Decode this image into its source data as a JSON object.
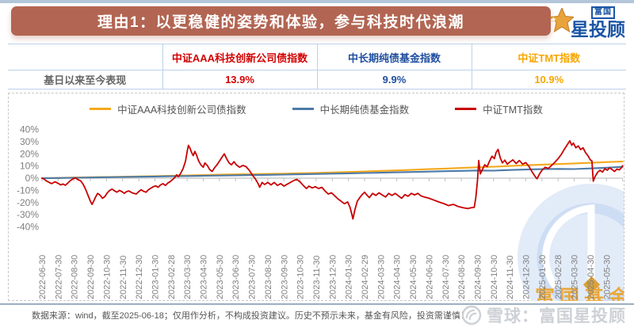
{
  "header": {
    "title": "理由1：以更稳健的姿势和体验，参与科技时代浪潮",
    "logo_top": "富国",
    "logo_main": "星投顾"
  },
  "table": {
    "row_label": "基日以来至今表现",
    "columns": [
      {
        "name": "中证AAA科技创新公司债指数",
        "value": "13.9%",
        "color": "#d40000"
      },
      {
        "name": "中长期纯债基金指数",
        "value": "9.9%",
        "color": "#1f4e9f"
      },
      {
        "name": "中证TMT指数",
        "value": "10.9%",
        "color": "#f7a600"
      }
    ]
  },
  "chart_data": {
    "type": "line",
    "title": "",
    "ylim": [
      -40,
      40
    ],
    "grid": false,
    "legend_position": "top",
    "y_tick_labels": [
      "40%",
      "30%",
      "20%",
      "10%",
      "0%",
      "-10%",
      "-20%",
      "-30%",
      "-40%"
    ],
    "x_labels": [
      "2022-06-30",
      "2022-07-30",
      "2022-08-30",
      "2022-09-30",
      "2022-10-30",
      "2022-11-30",
      "2022-12-30",
      "2023-01-30",
      "2023-02-28",
      "2023-03-30",
      "2023-04-30",
      "2023-05-30",
      "2023-06-30",
      "2023-07-30",
      "2023-08-30",
      "2023-09-30",
      "2023-10-30",
      "2023-11-30",
      "2023-12-30",
      "2024-01-30",
      "2024-02-29",
      "2024-03-30",
      "2024-04-30",
      "2024-05-30",
      "2024-06-30",
      "2024-07-30",
      "2024-08-30",
      "2024-09-30",
      "2024-10-30",
      "2024-11-30",
      "2024-12-30",
      "2025-01-30",
      "2025-02-28",
      "2025-03-30",
      "2025-04-30",
      "2025-05-30"
    ],
    "axis_color": "#c0c0c0",
    "label_color": "#7f7f7f",
    "series": [
      {
        "name": "中证AAA科技创新公司债指数",
        "color": "#f5a81c",
        "unit": "%",
        "values": [
          0,
          0.2,
          0.5,
          0.8,
          1.0,
          1.2,
          1.4,
          1.7,
          2.0,
          2.3,
          2.6,
          2.9,
          3.1,
          3.3,
          3.5,
          3.7,
          4.0,
          4.3,
          4.7,
          5.1,
          5.5,
          6.0,
          6.4,
          6.9,
          7.4,
          7.9,
          8.4,
          8.9,
          9.4,
          10.0,
          10.6,
          11.1,
          11.6,
          12.1,
          12.6,
          13.2,
          13.7
        ]
      },
      {
        "name": "中长期纯债基金指数",
        "color": "#4d7aa8",
        "unit": "%",
        "values": [
          0,
          0.15,
          0.35,
          0.55,
          0.75,
          0.95,
          1.15,
          1.35,
          1.55,
          1.75,
          1.95,
          2.15,
          2.35,
          2.55,
          2.75,
          2.95,
          3.2,
          3.45,
          3.7,
          3.95,
          4.2,
          4.5,
          4.8,
          5.1,
          5.4,
          5.7,
          6.0,
          6.3,
          6.2,
          6.7,
          7.1,
          7.4,
          7.6,
          7.5,
          8.0,
          8.6,
          9.3
        ]
      },
      {
        "name": "中证TMT指数",
        "color": "#c80000",
        "unit": "%",
        "points": [
          [
            0,
            0
          ],
          [
            0.15,
            -1
          ],
          [
            0.3,
            -2.5
          ],
          [
            0.45,
            -3.5
          ],
          [
            0.6,
            -4.5
          ],
          [
            0.8,
            -3
          ],
          [
            1,
            -4.2
          ],
          [
            1.15,
            -5.5
          ],
          [
            1.3,
            -4.8
          ],
          [
            1.45,
            -5.8
          ],
          [
            1.6,
            -4
          ],
          [
            1.75,
            -2
          ],
          [
            1.9,
            -0.8
          ],
          [
            2.05,
            0.3
          ],
          [
            2.2,
            -1
          ],
          [
            2.4,
            -2.2
          ],
          [
            2.55,
            -5
          ],
          [
            2.7,
            -9
          ],
          [
            2.85,
            -14
          ],
          [
            3,
            -19
          ],
          [
            3.1,
            -21.5
          ],
          [
            3.2,
            -19
          ],
          [
            3.3,
            -16
          ],
          [
            3.45,
            -12.5
          ],
          [
            3.6,
            -14
          ],
          [
            3.75,
            -16.5
          ],
          [
            3.9,
            -15
          ],
          [
            4.05,
            -12
          ],
          [
            4.2,
            -10
          ],
          [
            4.35,
            -9
          ],
          [
            4.5,
            -10.5
          ],
          [
            4.65,
            -11.5
          ],
          [
            4.8,
            -10
          ],
          [
            4.95,
            -11
          ],
          [
            5.1,
            -12.5
          ],
          [
            5.25,
            -11
          ],
          [
            5.4,
            -10.5
          ],
          [
            5.55,
            -11.8
          ],
          [
            5.7,
            -12.5
          ],
          [
            5.85,
            -13
          ],
          [
            6,
            -11
          ],
          [
            6.15,
            -9.5
          ],
          [
            6.3,
            -10.8
          ],
          [
            6.45,
            -11.5
          ],
          [
            6.6,
            -9.5
          ],
          [
            6.75,
            -8.2
          ],
          [
            6.9,
            -7
          ],
          [
            7.05,
            -6.3
          ],
          [
            7.2,
            -7.5
          ],
          [
            7.35,
            -5.5
          ],
          [
            7.5,
            -4.5
          ],
          [
            7.65,
            -6
          ],
          [
            7.8,
            -4
          ],
          [
            7.95,
            -2.8
          ],
          [
            8.1,
            -1.2
          ],
          [
            8.25,
            0.8
          ],
          [
            8.35,
            2.8
          ],
          [
            8.45,
            1.2
          ],
          [
            8.6,
            4
          ],
          [
            8.75,
            8
          ],
          [
            8.9,
            14
          ],
          [
            9,
            22
          ],
          [
            9.08,
            27
          ],
          [
            9.18,
            24.5
          ],
          [
            9.28,
            21
          ],
          [
            9.38,
            18.5
          ],
          [
            9.48,
            22
          ],
          [
            9.58,
            19
          ],
          [
            9.7,
            14.5
          ],
          [
            9.85,
            11
          ],
          [
            10,
            9
          ],
          [
            10.1,
            12.5
          ],
          [
            10.25,
            10.5
          ],
          [
            10.4,
            7
          ],
          [
            10.55,
            5.5
          ],
          [
            10.7,
            8.5
          ],
          [
            10.85,
            11
          ],
          [
            11,
            14
          ],
          [
            11.15,
            17
          ],
          [
            11.3,
            20
          ],
          [
            11.45,
            16
          ],
          [
            11.6,
            12.5
          ],
          [
            11.75,
            11
          ],
          [
            11.9,
            13.5
          ],
          [
            12.05,
            11
          ],
          [
            12.25,
            9
          ],
          [
            12.45,
            10.5
          ],
          [
            12.65,
            9.5
          ],
          [
            12.85,
            6.5
          ],
          [
            13.05,
            2.5
          ],
          [
            13.25,
            -1
          ],
          [
            13.4,
            -4.5
          ],
          [
            13.5,
            -7.5
          ],
          [
            13.65,
            -3.5
          ],
          [
            13.8,
            -5.2
          ],
          [
            14,
            -3.5
          ],
          [
            14.2,
            -5.5
          ],
          [
            14.4,
            -3.5
          ],
          [
            14.6,
            -6
          ],
          [
            14.8,
            -4.5
          ],
          [
            15,
            -6.5
          ],
          [
            15.2,
            -5
          ],
          [
            15.4,
            -3.5
          ],
          [
            15.6,
            -2
          ],
          [
            15.8,
            -1
          ],
          [
            16,
            -3
          ],
          [
            16.2,
            -6
          ],
          [
            16.4,
            -8.5
          ],
          [
            16.55,
            -6.5
          ],
          [
            16.75,
            -8
          ],
          [
            16.95,
            -7
          ],
          [
            17.15,
            -8.5
          ],
          [
            17.35,
            -7.5
          ],
          [
            17.55,
            -10.5
          ],
          [
            17.75,
            -13
          ],
          [
            17.95,
            -12
          ],
          [
            18.15,
            -14.5
          ],
          [
            18.35,
            -17
          ],
          [
            18.55,
            -19
          ],
          [
            18.75,
            -21
          ],
          [
            18.95,
            -19.5
          ],
          [
            19.1,
            -24
          ],
          [
            19.2,
            -29
          ],
          [
            19.28,
            -33.5
          ],
          [
            19.4,
            -26
          ],
          [
            19.55,
            -19
          ],
          [
            19.7,
            -16
          ],
          [
            19.85,
            -13.5
          ],
          [
            20,
            -11.5
          ],
          [
            20.15,
            -14
          ],
          [
            20.3,
            -16
          ],
          [
            20.5,
            -12.5
          ],
          [
            20.7,
            -14.2
          ],
          [
            20.9,
            -12
          ],
          [
            21.1,
            -13.8
          ],
          [
            21.3,
            -15.5
          ],
          [
            21.5,
            -12.5
          ],
          [
            21.7,
            -14.2
          ],
          [
            21.9,
            -12.5
          ],
          [
            22.1,
            -14.5
          ],
          [
            22.3,
            -16.5
          ],
          [
            22.5,
            -13.5
          ],
          [
            22.7,
            -14.8
          ],
          [
            22.9,
            -12.5
          ],
          [
            23.1,
            -13.8
          ],
          [
            23.3,
            -12.5
          ],
          [
            23.5,
            -14.5
          ],
          [
            23.7,
            -15.5
          ],
          [
            24,
            -16.5
          ],
          [
            24.3,
            -18
          ],
          [
            24.6,
            -19.5
          ],
          [
            24.9,
            -20.8
          ],
          [
            25.2,
            -22.5
          ],
          [
            25.5,
            -21.5
          ],
          [
            25.8,
            -23.2
          ],
          [
            26.1,
            -24.2
          ],
          [
            26.4,
            -25
          ],
          [
            26.6,
            -24.3
          ],
          [
            26.8,
            -24
          ],
          [
            26.9,
            -16
          ],
          [
            27,
            -2
          ],
          [
            27.08,
            14.5
          ],
          [
            27.18,
            3.5
          ],
          [
            27.32,
            7.5
          ],
          [
            27.45,
            11
          ],
          [
            27.6,
            9.5
          ],
          [
            27.75,
            14
          ],
          [
            27.9,
            18
          ],
          [
            28.05,
            16
          ],
          [
            28.15,
            21
          ],
          [
            28.28,
            23.7
          ],
          [
            28.42,
            16.5
          ],
          [
            28.55,
            12.5
          ],
          [
            28.7,
            14.8
          ],
          [
            28.85,
            11.5
          ],
          [
            29,
            13.2
          ],
          [
            29.2,
            15
          ],
          [
            29.4,
            12
          ],
          [
            29.6,
            14.5
          ],
          [
            29.8,
            11.5
          ],
          [
            30,
            12.8
          ],
          [
            30.2,
            9.5
          ],
          [
            30.4,
            5
          ],
          [
            30.6,
            1
          ],
          [
            30.7,
            -0.5
          ],
          [
            30.85,
            3.5
          ],
          [
            31,
            6.5
          ],
          [
            31.2,
            9
          ],
          [
            31.4,
            8
          ],
          [
            31.6,
            10.5
          ],
          [
            31.8,
            13
          ],
          [
            32,
            16
          ],
          [
            32.2,
            19.5
          ],
          [
            32.4,
            24
          ],
          [
            32.6,
            28
          ],
          [
            32.72,
            30.7
          ],
          [
            32.85,
            27
          ],
          [
            32.95,
            28.8
          ],
          [
            33.1,
            25
          ],
          [
            33.25,
            26.5
          ],
          [
            33.4,
            23.5
          ],
          [
            33.55,
            25
          ],
          [
            33.7,
            21
          ],
          [
            33.85,
            18.5
          ],
          [
            34,
            15
          ],
          [
            34.1,
            14.2
          ],
          [
            34.18,
            -2.5
          ],
          [
            34.3,
            1.5
          ],
          [
            34.45,
            4.8
          ],
          [
            34.6,
            6.5
          ],
          [
            34.75,
            5
          ],
          [
            34.9,
            7.8
          ],
          [
            35.05,
            6.5
          ],
          [
            35.2,
            8.5
          ],
          [
            35.35,
            7
          ],
          [
            35.5,
            5.5
          ],
          [
            35.65,
            7.5
          ],
          [
            35.8,
            6.8
          ],
          [
            35.95,
            9
          ],
          [
            36,
            10.2
          ]
        ]
      }
    ],
    "watermark": {
      "text": "富国基金",
      "text_color": "#e9a83c",
      "circle_color": "#e2ebf8",
      "ring_color": "#cdddf3"
    }
  },
  "footer": {
    "source": "数据来源：wind，截至2025-06-18；仅用作分析，不构成投资建议。历史不预示未来，基金有风险，投资需谨慎！",
    "watermark": "雪球：富国星投顾"
  }
}
